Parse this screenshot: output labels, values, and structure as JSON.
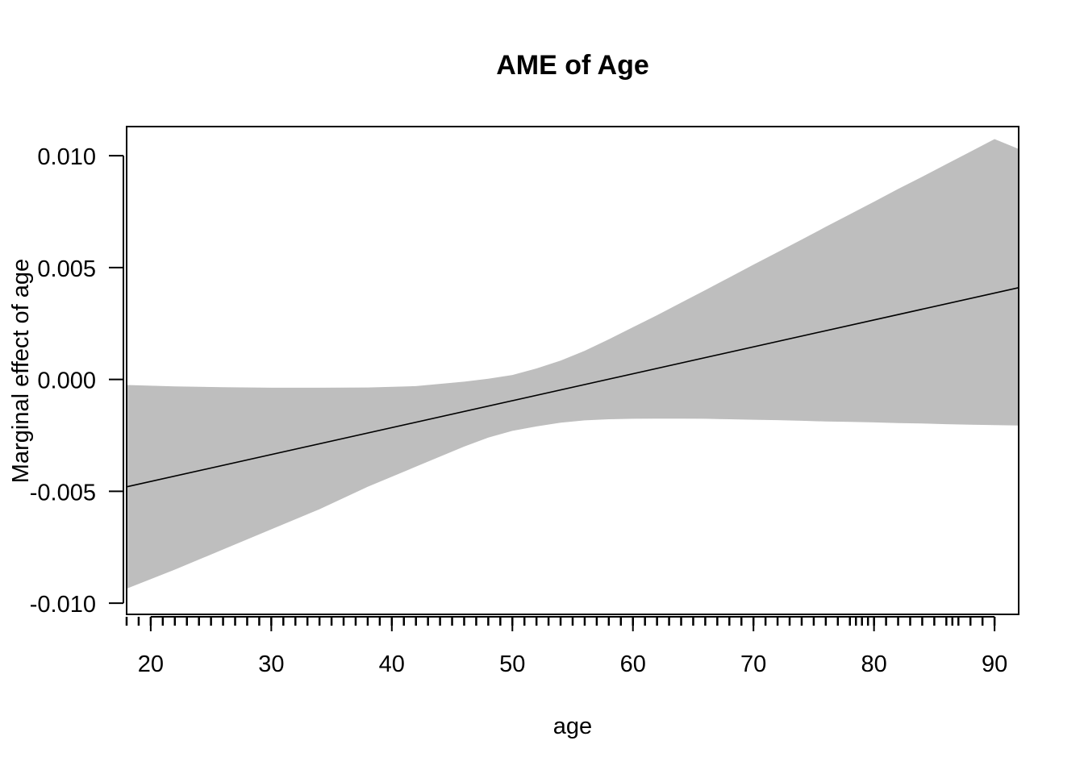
{
  "chart_data": {
    "type": "line",
    "title": "AME of Age",
    "xlabel": "age",
    "ylabel": "Marginal effect of age",
    "xlim": [
      18,
      92
    ],
    "ylim": [
      -0.0105,
      0.0113
    ],
    "xticks": [
      20,
      30,
      40,
      50,
      60,
      70,
      80,
      90
    ],
    "xtick_labels": [
      "20",
      "30",
      "40",
      "50",
      "60",
      "70",
      "80",
      "90"
    ],
    "yticks": [
      -0.01,
      -0.005,
      0.0,
      0.005,
      0.01
    ],
    "ytick_labels": [
      "-0.010",
      "-0.005",
      "0.000",
      "0.005",
      "0.010"
    ],
    "grid": false,
    "series": [
      {
        "x": [
          18,
          92
        ],
        "y": [
          -0.0048,
          0.0041
        ],
        "color": "#000000"
      }
    ],
    "band": {
      "color": "#bebebe",
      "x": [
        18,
        22,
        26,
        30,
        34,
        38,
        42,
        46,
        48,
        50,
        52,
        54,
        56,
        58,
        60,
        62,
        64,
        66,
        68,
        70,
        72,
        74,
        76,
        78,
        80,
        82,
        84,
        86,
        88,
        90,
        92
      ],
      "upper": [
        -0.00025,
        -0.00031,
        -0.00035,
        -0.00037,
        -0.00037,
        -0.00036,
        -0.0003,
        -0.0001,
        3e-05,
        0.0002,
        0.00049,
        0.00084,
        0.00128,
        0.00179,
        0.00233,
        0.00287,
        0.00343,
        0.00399,
        0.00456,
        0.00513,
        0.00569,
        0.00625,
        0.00682,
        0.00738,
        0.00794,
        0.00851,
        0.00906,
        0.00962,
        0.01018,
        0.01074,
        0.0103
      ],
      "lower": [
        -0.00935,
        -0.0085,
        -0.0076,
        -0.0067,
        -0.0058,
        -0.0048,
        -0.0039,
        -0.003,
        -0.0026,
        -0.0023,
        -0.0021,
        -0.00193,
        -0.00183,
        -0.00178,
        -0.00176,
        -0.00175,
        -0.00175,
        -0.00176,
        -0.00178,
        -0.0018,
        -0.00182,
        -0.00185,
        -0.00188,
        -0.0019,
        -0.00192,
        -0.00195,
        -0.00197,
        -0.002,
        -0.00202,
        -0.00204,
        -0.00206
      ]
    },
    "rug": [
      18,
      19,
      20,
      21,
      22,
      23,
      24,
      25,
      26,
      27,
      28,
      29,
      30,
      31,
      32,
      33,
      34,
      35,
      36,
      37,
      38,
      39,
      40,
      41,
      42,
      43,
      44,
      45,
      46,
      47,
      48,
      49,
      50,
      51,
      52,
      53,
      54,
      55,
      56,
      57,
      58,
      59,
      60,
      61,
      62,
      63,
      64,
      65,
      66,
      67,
      68,
      69,
      70,
      71,
      72,
      73,
      74,
      75,
      76,
      77,
      78,
      78.5,
      79,
      79.5,
      80,
      81,
      82,
      83,
      84,
      85,
      86,
      86.5,
      87,
      88,
      89,
      90
    ]
  }
}
